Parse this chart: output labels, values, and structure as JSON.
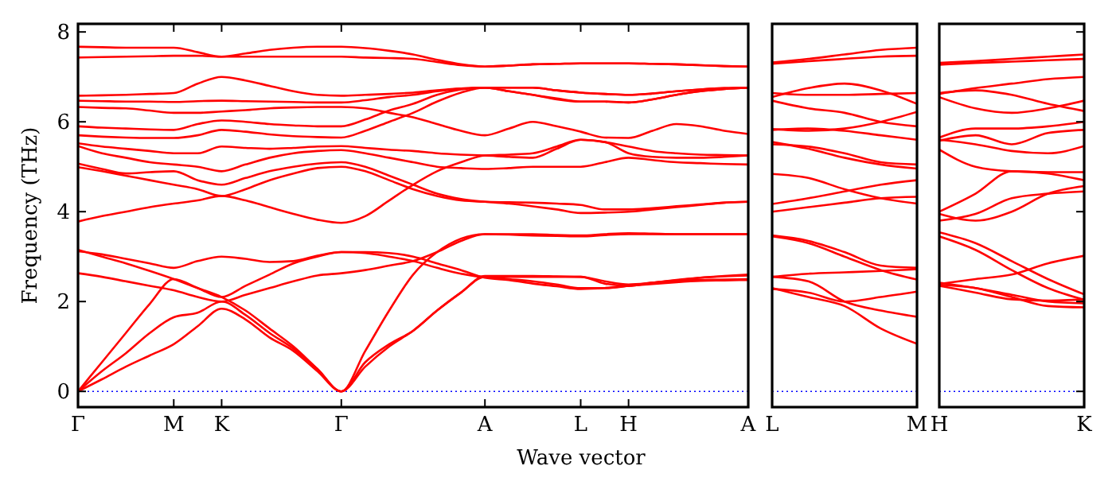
{
  "chart_data": [
    {
      "type": "line",
      "xlabel": "Wave vector",
      "ylabel": "Frequency (THz)",
      "categories": [
        "Γ",
        null,
        null,
        null,
        "M",
        null,
        "K",
        null,
        null,
        null,
        null,
        "Γ",
        null,
        null,
        null,
        null,
        null,
        "A",
        null,
        null,
        null,
        "L",
        null,
        "H",
        null,
        null,
        null,
        null,
        "A"
      ],
      "ylim": [
        -0.35,
        8.18
      ],
      "yticks": [
        0,
        2,
        4,
        6,
        8
      ],
      "ref_lines": [
        {
          "axis": "y",
          "value": 0,
          "color": "#0000ff",
          "line_style": "dotted"
        }
      ],
      "series": [
        {
          "color": "#ff0000",
          "values": [
            0,
            0.27,
            0.55,
            0.8,
            1.05,
            1.45,
            1.84,
            1.6,
            1.2,
            0.9,
            0.45,
            0,
            0.65,
            1.05,
            1.35,
            1.8,
            2.2,
            2.55,
            2.5,
            2.45,
            2.38,
            2.3,
            2.3,
            2.35,
            2.42,
            2.46,
            2.48,
            2.49,
            2.5
          ]
        },
        {
          "color": "#ff0000",
          "values": [
            0,
            0.45,
            0.85,
            1.3,
            1.65,
            1.75,
            2.0,
            1.7,
            1.3,
            0.95,
            0.5,
            0,
            0.55,
            1.0,
            1.35,
            1.8,
            2.2,
            2.57,
            2.57,
            2.57,
            2.56,
            2.55,
            2.45,
            2.38,
            2.42,
            2.47,
            2.53,
            2.57,
            2.6
          ]
        },
        {
          "color": "#ff0000",
          "values": [
            0,
            0.65,
            1.3,
            1.95,
            2.5,
            2.3,
            2.1,
            1.8,
            1.4,
            1.0,
            0.5,
            0,
            0.9,
            1.8,
            2.6,
            3.1,
            3.4,
            3.5,
            3.49,
            3.47,
            3.46,
            3.45,
            3.48,
            3.5,
            3.5,
            3.5,
            3.5,
            3.5,
            3.5
          ]
        },
        {
          "color": "#ff0000",
          "values": [
            2.63,
            2.55,
            2.45,
            2.35,
            2.25,
            2.1,
            2.0,
            2.15,
            2.3,
            2.45,
            2.58,
            2.63,
            2.7,
            2.8,
            2.9,
            3.1,
            3.35,
            3.5,
            3.5,
            3.5,
            3.48,
            3.47,
            3.5,
            3.52,
            3.51,
            3.5,
            3.5,
            3.5,
            3.5
          ]
        },
        {
          "color": "#ff0000",
          "values": [
            3.12,
            3.05,
            2.95,
            2.85,
            2.75,
            2.9,
            3.0,
            2.95,
            2.88,
            2.9,
            3.02,
            3.1,
            3.1,
            3.08,
            3.0,
            2.85,
            2.7,
            2.53,
            2.48,
            2.4,
            2.34,
            2.28,
            2.3,
            2.35,
            2.39,
            2.43,
            2.46,
            2.47,
            2.48
          ]
        },
        {
          "color": "#ff0000",
          "values": [
            3.15,
            3.0,
            2.85,
            2.68,
            2.5,
            2.3,
            2.1,
            2.35,
            2.6,
            2.85,
            3.0,
            3.1,
            3.08,
            3.0,
            2.9,
            2.75,
            2.62,
            2.55,
            2.55,
            2.55,
            2.55,
            2.55,
            2.4,
            2.35,
            2.42,
            2.48,
            2.53,
            2.56,
            2.58
          ]
        },
        {
          "color": "#ff0000",
          "values": [
            3.78,
            3.9,
            4.0,
            4.1,
            4.18,
            4.25,
            4.35,
            4.25,
            4.1,
            3.95,
            3.82,
            3.75,
            3.9,
            4.25,
            4.6,
            4.9,
            5.1,
            5.25,
            5.27,
            5.3,
            5.45,
            5.6,
            5.55,
            5.3,
            5.22,
            5.2,
            5.2,
            5.22,
            5.25
          ]
        },
        {
          "color": "#ff0000",
          "values": [
            4.99,
            4.9,
            4.8,
            4.7,
            4.6,
            4.5,
            4.35,
            4.5,
            4.7,
            4.85,
            4.97,
            5.0,
            4.9,
            4.7,
            4.5,
            4.35,
            4.25,
            4.22,
            4.21,
            4.2,
            4.18,
            4.15,
            4.05,
            4.05,
            4.08,
            4.12,
            4.16,
            4.2,
            4.22
          ]
        },
        {
          "color": "#ff0000",
          "values": [
            5.07,
            4.95,
            4.85,
            4.88,
            4.9,
            4.7,
            4.6,
            4.75,
            4.9,
            5.0,
            5.07,
            5.1,
            5.0,
            4.8,
            4.6,
            4.4,
            4.28,
            4.22,
            4.18,
            4.12,
            4.05,
            3.97,
            3.98,
            4.0,
            4.05,
            4.1,
            4.15,
            4.2,
            4.22
          ]
        },
        {
          "color": "#ff0000",
          "values": [
            5.46,
            5.3,
            5.2,
            5.1,
            5.05,
            5.0,
            4.9,
            5.05,
            5.2,
            5.3,
            5.35,
            5.37,
            5.3,
            5.2,
            5.1,
            5.0,
            4.97,
            4.95,
            4.97,
            5.0,
            5.0,
            5.0,
            5.1,
            5.2,
            5.15,
            5.1,
            5.08,
            5.06,
            5.05
          ]
        },
        {
          "color": "#ff0000",
          "values": [
            5.52,
            5.45,
            5.4,
            5.35,
            5.3,
            5.3,
            5.45,
            5.42,
            5.4,
            5.42,
            5.45,
            5.46,
            5.42,
            5.38,
            5.35,
            5.3,
            5.27,
            5.25,
            5.22,
            5.2,
            5.4,
            5.6,
            5.55,
            5.45,
            5.35,
            5.3,
            5.27,
            5.26,
            5.25
          ]
        },
        {
          "color": "#ff0000",
          "values": [
            5.7,
            5.67,
            5.65,
            5.64,
            5.64,
            5.7,
            5.82,
            5.78,
            5.72,
            5.68,
            5.66,
            5.65,
            5.8,
            6.0,
            6.2,
            6.45,
            6.65,
            6.76,
            6.76,
            6.76,
            6.7,
            6.65,
            6.62,
            6.6,
            6.63,
            6.68,
            6.72,
            6.75,
            6.76
          ]
        },
        {
          "color": "#ff0000",
          "values": [
            5.9,
            5.87,
            5.85,
            5.83,
            5.82,
            5.95,
            6.03,
            6.0,
            5.95,
            5.92,
            5.9,
            5.9,
            6.05,
            6.25,
            6.4,
            6.6,
            6.72,
            6.76,
            6.68,
            6.6,
            6.5,
            6.45,
            6.45,
            6.43,
            6.5,
            6.6,
            6.68,
            6.73,
            6.76
          ]
        },
        {
          "color": "#ff0000",
          "values": [
            6.33,
            6.31,
            6.3,
            6.25,
            6.2,
            6.2,
            6.23,
            6.26,
            6.3,
            6.32,
            6.33,
            6.33,
            6.3,
            6.2,
            6.1,
            5.95,
            5.8,
            5.7,
            5.85,
            6.0,
            5.9,
            5.78,
            5.65,
            5.64,
            5.8,
            5.95,
            5.9,
            5.8,
            5.73
          ]
        },
        {
          "color": "#ff0000",
          "values": [
            6.47,
            6.46,
            6.45,
            6.45,
            6.44,
            6.46,
            6.47,
            6.46,
            6.45,
            6.44,
            6.43,
            6.43,
            6.48,
            6.55,
            6.6,
            6.68,
            6.74,
            6.76,
            6.76,
            6.76,
            6.7,
            6.65,
            6.62,
            6.6,
            6.63,
            6.68,
            6.72,
            6.75,
            6.76
          ]
        },
        {
          "color": "#ff0000",
          "values": [
            6.58,
            6.59,
            6.6,
            6.62,
            6.64,
            6.85,
            7.0,
            6.92,
            6.8,
            6.68,
            6.6,
            6.58,
            6.6,
            6.62,
            6.65,
            6.7,
            6.74,
            6.76,
            6.68,
            6.6,
            6.52,
            6.45,
            6.45,
            6.43,
            6.5,
            6.6,
            6.68,
            6.73,
            6.76
          ]
        },
        {
          "color": "#ff0000",
          "values": [
            7.43,
            7.44,
            7.45,
            7.46,
            7.47,
            7.47,
            7.45,
            7.45,
            7.45,
            7.45,
            7.45,
            7.45,
            7.43,
            7.42,
            7.4,
            7.33,
            7.26,
            7.23,
            7.25,
            7.28,
            7.29,
            7.3,
            7.3,
            7.3,
            7.29,
            7.28,
            7.26,
            7.24,
            7.23
          ]
        },
        {
          "color": "#ff0000",
          "values": [
            7.67,
            7.66,
            7.65,
            7.65,
            7.65,
            7.55,
            7.45,
            7.52,
            7.6,
            7.65,
            7.67,
            7.67,
            7.64,
            7.58,
            7.5,
            7.38,
            7.28,
            7.23,
            7.25,
            7.28,
            7.29,
            7.3,
            7.3,
            7.3,
            7.29,
            7.28,
            7.26,
            7.24,
            7.23
          ]
        }
      ]
    },
    {
      "type": "line",
      "categories": [
        "L",
        null,
        null,
        null,
        "M"
      ],
      "ylim": [
        -0.35,
        8.18
      ],
      "yticks": [
        0,
        2,
        4,
        6,
        8
      ],
      "tick_labels": "x",
      "ref_lines": [
        {
          "axis": "y",
          "value": 0,
          "color": "#0000ff",
          "line_style": "dotted"
        }
      ],
      "series": [
        {
          "color": "#ff0000",
          "values": [
            2.3,
            2.1,
            1.9,
            1.4,
            1.06
          ]
        },
        {
          "color": "#ff0000",
          "values": [
            2.55,
            2.45,
            2.0,
            1.8,
            1.66
          ]
        },
        {
          "color": "#ff0000",
          "values": [
            3.45,
            3.3,
            3.0,
            2.7,
            2.49
          ]
        },
        {
          "color": "#ff0000",
          "values": [
            3.47,
            3.35,
            3.1,
            2.8,
            2.75
          ]
        },
        {
          "color": "#ff0000",
          "values": [
            2.28,
            2.2,
            2.0,
            2.1,
            2.22
          ]
        },
        {
          "color": "#ff0000",
          "values": [
            2.55,
            2.62,
            2.65,
            2.68,
            2.72
          ]
        },
        {
          "color": "#ff0000",
          "values": [
            4.0,
            4.1,
            4.2,
            4.3,
            4.33
          ]
        },
        {
          "color": "#ff0000",
          "values": [
            4.84,
            4.75,
            4.5,
            4.3,
            4.18
          ]
        },
        {
          "color": "#ff0000",
          "values": [
            4.17,
            4.3,
            4.45,
            4.6,
            4.7
          ]
        },
        {
          "color": "#ff0000",
          "values": [
            5.55,
            5.4,
            5.2,
            5.05,
            4.96
          ]
        },
        {
          "color": "#ff0000",
          "values": [
            5.5,
            5.45,
            5.3,
            5.1,
            5.05
          ]
        },
        {
          "color": "#ff0000",
          "values": [
            5.82,
            5.85,
            5.8,
            5.7,
            5.6
          ]
        },
        {
          "color": "#ff0000",
          "values": [
            5.84,
            5.8,
            5.85,
            6.0,
            6.22
          ]
        },
        {
          "color": "#ff0000",
          "values": [
            6.47,
            6.3,
            6.2,
            6.0,
            5.9
          ]
        },
        {
          "color": "#ff0000",
          "values": [
            6.55,
            6.75,
            6.85,
            6.7,
            6.4
          ]
        },
        {
          "color": "#ff0000",
          "values": [
            6.64,
            6.6,
            6.6,
            6.62,
            6.64
          ]
        },
        {
          "color": "#ff0000",
          "values": [
            7.29,
            7.35,
            7.4,
            7.45,
            7.47
          ]
        },
        {
          "color": "#ff0000",
          "values": [
            7.32,
            7.4,
            7.5,
            7.6,
            7.65
          ]
        }
      ]
    },
    {
      "type": "line",
      "categories": [
        "H",
        null,
        null,
        null,
        "K"
      ],
      "ylim": [
        -0.35,
        8.18
      ],
      "yticks": [
        0,
        2,
        4,
        6,
        8
      ],
      "tick_labels": "x",
      "ref_lines": [
        {
          "axis": "y",
          "value": 0,
          "color": "#0000ff",
          "line_style": "dotted"
        }
      ],
      "series": [
        {
          "color": "#ff0000",
          "values": [
            2.37,
            2.3,
            2.1,
            1.9,
            1.87
          ]
        },
        {
          "color": "#ff0000",
          "values": [
            2.42,
            2.3,
            2.15,
            2.0,
            1.96
          ]
        },
        {
          "color": "#ff0000",
          "values": [
            3.54,
            3.3,
            2.9,
            2.5,
            2.16
          ]
        },
        {
          "color": "#ff0000",
          "values": [
            2.39,
            2.5,
            2.6,
            2.85,
            3.02
          ]
        },
        {
          "color": "#ff0000",
          "values": [
            3.45,
            3.15,
            2.7,
            2.3,
            2.04
          ]
        },
        {
          "color": "#ff0000",
          "values": [
            2.35,
            2.2,
            2.05,
            2.02,
            2.05
          ]
        },
        {
          "color": "#ff0000",
          "values": [
            3.8,
            3.95,
            4.3,
            4.4,
            4.45
          ]
        },
        {
          "color": "#ff0000",
          "values": [
            4.0,
            4.4,
            4.9,
            4.85,
            4.7
          ]
        },
        {
          "color": "#ff0000",
          "values": [
            3.95,
            3.8,
            4.0,
            4.4,
            4.57
          ]
        },
        {
          "color": "#ff0000",
          "values": [
            5.38,
            5.0,
            4.9,
            4.88,
            4.88
          ]
        },
        {
          "color": "#ff0000",
          "values": [
            5.6,
            5.5,
            5.35,
            5.3,
            5.46
          ]
        },
        {
          "color": "#ff0000",
          "values": [
            5.58,
            5.7,
            5.5,
            5.75,
            5.82
          ]
        },
        {
          "color": "#ff0000",
          "values": [
            5.65,
            5.85,
            5.85,
            5.9,
            6.0
          ]
        },
        {
          "color": "#ff0000",
          "values": [
            6.64,
            6.7,
            6.6,
            6.4,
            6.24
          ]
        },
        {
          "color": "#ff0000",
          "values": [
            6.55,
            6.3,
            6.2,
            6.3,
            6.47
          ]
        },
        {
          "color": "#ff0000",
          "values": [
            6.62,
            6.75,
            6.85,
            6.95,
            7.0
          ]
        },
        {
          "color": "#ff0000",
          "values": [
            7.27,
            7.31,
            7.34,
            7.37,
            7.4
          ]
        },
        {
          "color": "#ff0000",
          "values": [
            7.31,
            7.35,
            7.4,
            7.45,
            7.5
          ]
        }
      ]
    }
  ]
}
